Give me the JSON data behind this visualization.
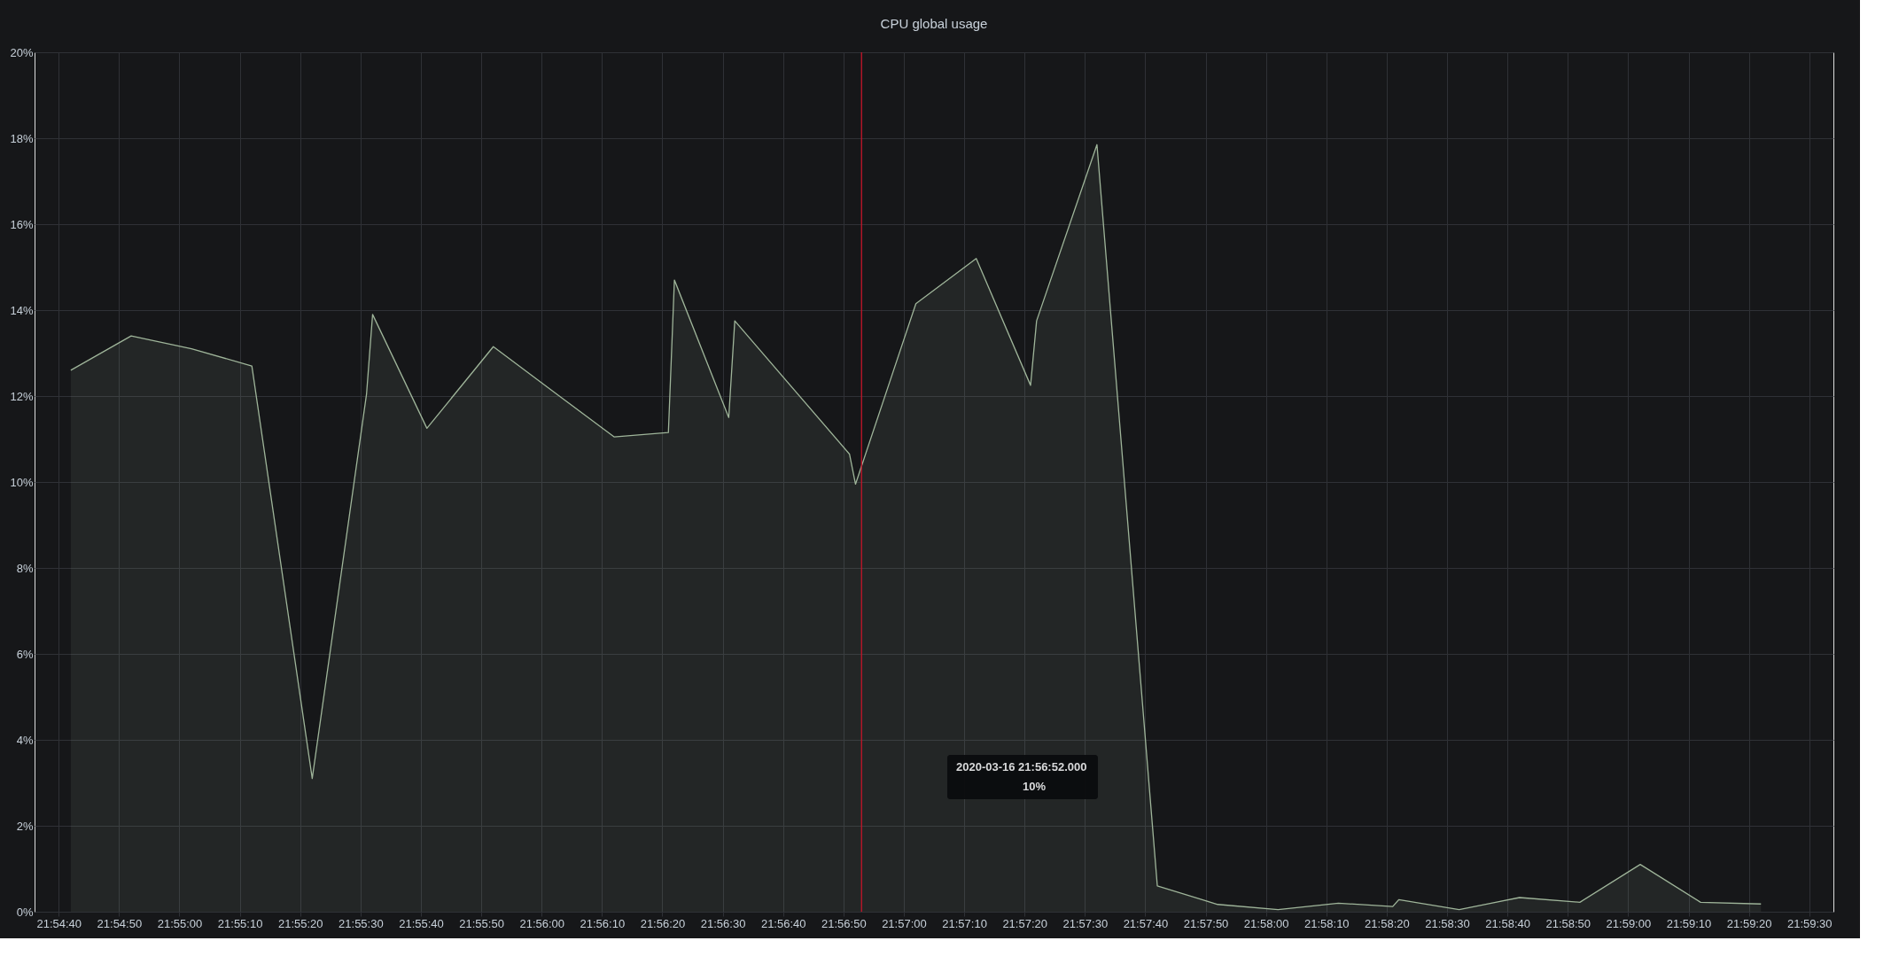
{
  "chart_data": {
    "type": "area",
    "title": "CPU global usage",
    "x": [
      "2020-03-16T21:54:42",
      "2020-03-16T21:54:52",
      "2020-03-16T21:55:02",
      "2020-03-16T21:55:12",
      "2020-03-16T21:55:22",
      "2020-03-16T21:55:31",
      "2020-03-16T21:55:32",
      "2020-03-16T21:55:41",
      "2020-03-16T21:55:52",
      "2020-03-16T21:56:02",
      "2020-03-16T21:56:12",
      "2020-03-16T21:56:21",
      "2020-03-16T21:56:22",
      "2020-03-16T21:56:31",
      "2020-03-16T21:56:32",
      "2020-03-16T21:56:51",
      "2020-03-16T21:56:52",
      "2020-03-16T21:57:02",
      "2020-03-16T21:57:12",
      "2020-03-16T21:57:21",
      "2020-03-16T21:57:22",
      "2020-03-16T21:57:32",
      "2020-03-16T21:57:42",
      "2020-03-16T21:57:52",
      "2020-03-16T21:58:02",
      "2020-03-16T21:58:12",
      "2020-03-16T21:58:21",
      "2020-03-16T21:58:22",
      "2020-03-16T21:58:32",
      "2020-03-16T21:58:42",
      "2020-03-16T21:58:52",
      "2020-03-16T21:59:02",
      "2020-03-16T21:59:12",
      "2020-03-16T21:59:22"
    ],
    "series": [
      {
        "color": "#9fb59a",
        "values": [
          12.6,
          13.4,
          13.1,
          12.7,
          3.1,
          12.05,
          13.9,
          11.25,
          13.15,
          12.1,
          11.05,
          11.15,
          14.7,
          11.5,
          13.75,
          10.65,
          9.95,
          14.15,
          15.2,
          12.25,
          13.75,
          17.85,
          0.6,
          0.17,
          0.05,
          0.2,
          0.12,
          0.28,
          0.05,
          0.33,
          0.22,
          1.1,
          0.22,
          0.18
        ]
      }
    ],
    "xlim": [
      "2020-03-16T21:54:36",
      "2020-03-16T21:59:34"
    ],
    "xticks": [
      {
        "value": "2020-03-16T21:54:40",
        "label": "21:54:40"
      },
      {
        "value": "2020-03-16T21:54:50",
        "label": "21:54:50"
      },
      {
        "value": "2020-03-16T21:55:00",
        "label": "21:55:00"
      },
      {
        "value": "2020-03-16T21:55:10",
        "label": "21:55:10"
      },
      {
        "value": "2020-03-16T21:55:20",
        "label": "21:55:20"
      },
      {
        "value": "2020-03-16T21:55:30",
        "label": "21:55:30"
      },
      {
        "value": "2020-03-16T21:55:40",
        "label": "21:55:40"
      },
      {
        "value": "2020-03-16T21:55:50",
        "label": "21:55:50"
      },
      {
        "value": "2020-03-16T21:56:00",
        "label": "21:56:00"
      },
      {
        "value": "2020-03-16T21:56:10",
        "label": "21:56:10"
      },
      {
        "value": "2020-03-16T21:56:20",
        "label": "21:56:20"
      },
      {
        "value": "2020-03-16T21:56:30",
        "label": "21:56:30"
      },
      {
        "value": "2020-03-16T21:56:40",
        "label": "21:56:40"
      },
      {
        "value": "2020-03-16T21:56:50",
        "label": "21:56:50"
      },
      {
        "value": "2020-03-16T21:57:00",
        "label": "21:57:00"
      },
      {
        "value": "2020-03-16T21:57:10",
        "label": "21:57:10"
      },
      {
        "value": "2020-03-16T21:57:20",
        "label": "21:57:20"
      },
      {
        "value": "2020-03-16T21:57:30",
        "label": "21:57:30"
      },
      {
        "value": "2020-03-16T21:57:40",
        "label": "21:57:40"
      },
      {
        "value": "2020-03-16T21:57:50",
        "label": "21:57:50"
      },
      {
        "value": "2020-03-16T21:58:00",
        "label": "21:58:00"
      },
      {
        "value": "2020-03-16T21:58:10",
        "label": "21:58:10"
      },
      {
        "value": "2020-03-16T21:58:20",
        "label": "21:58:20"
      },
      {
        "value": "2020-03-16T21:58:30",
        "label": "21:58:30"
      },
      {
        "value": "2020-03-16T21:58:40",
        "label": "21:58:40"
      },
      {
        "value": "2020-03-16T21:58:50",
        "label": "21:58:50"
      },
      {
        "value": "2020-03-16T21:59:00",
        "label": "21:59:00"
      },
      {
        "value": "2020-03-16T21:59:10",
        "label": "21:59:10"
      },
      {
        "value": "2020-03-16T21:59:20",
        "label": "21:59:20"
      },
      {
        "value": "2020-03-16T21:59:30",
        "label": "21:59:30"
      }
    ],
    "ylim": [
      0,
      20
    ],
    "yticks": [
      {
        "value": 0,
        "label": "0%"
      },
      {
        "value": 2,
        "label": "2%"
      },
      {
        "value": 4,
        "label": "4%"
      },
      {
        "value": 6,
        "label": "6%"
      },
      {
        "value": 8,
        "label": "8%"
      },
      {
        "value": 10,
        "label": "10%"
      },
      {
        "value": 12,
        "label": "12%"
      },
      {
        "value": 14,
        "label": "14%"
      },
      {
        "value": 16,
        "label": "16%"
      },
      {
        "value": 18,
        "label": "18%"
      },
      {
        "value": 20,
        "label": "20%"
      }
    ],
    "grid": true,
    "ref_lines": [
      {
        "axis": "x",
        "value": "2020-03-16T21:56:53",
        "color": "#c4162a"
      }
    ],
    "annotations": [
      "2020-03-16 21:56:52.000",
      "10%"
    ]
  }
}
